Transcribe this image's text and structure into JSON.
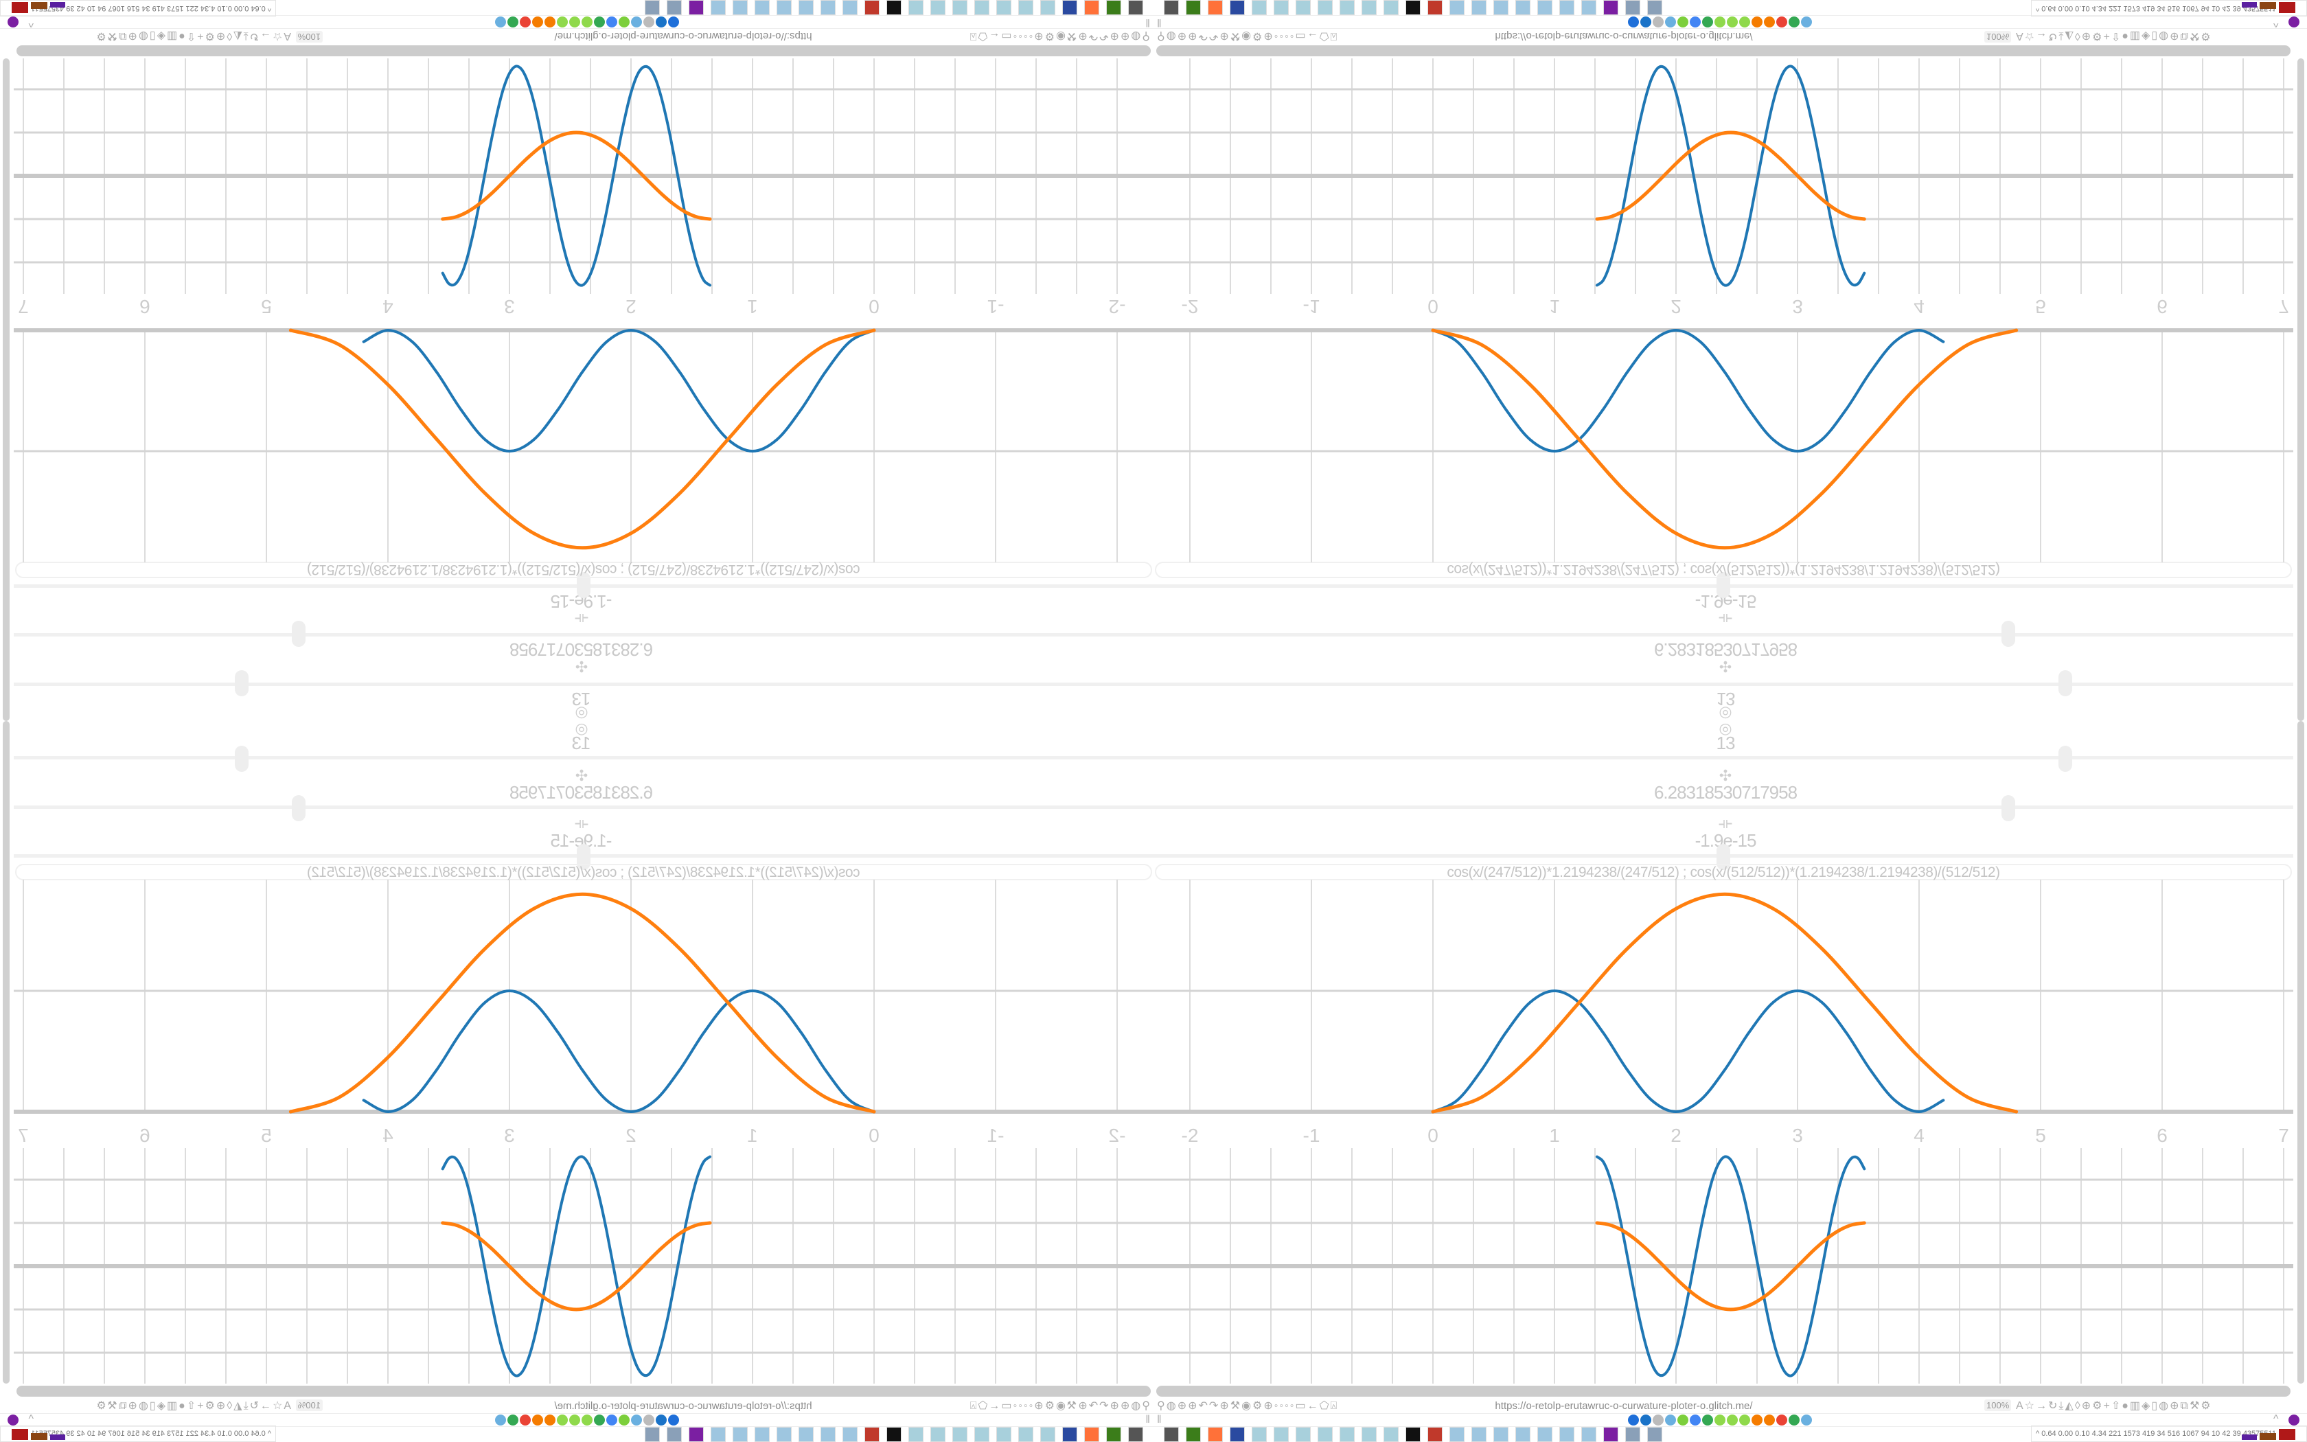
{
  "browser": {
    "url": "https://o-retolp-erutawruc-o-curwature-ploter-o.glitch.me/",
    "zoom_level": "100%",
    "address_left_icons": [
      "rocket-icon",
      "extension-icon",
      "globe-icon",
      "globe-icon",
      "undo-icon",
      "redo-icon",
      "globe-icon",
      "wrench-icon",
      "firefox-icon",
      "gear-icon",
      "globe-icon",
      "circle-icon",
      "circle-icon",
      "circle-icon",
      "circle-icon",
      "folder-icon",
      "back-icon",
      "tag-icon",
      "lock-icon"
    ],
    "address_right_icons": [
      "translate-icon",
      "star-icon",
      "forward-icon",
      "reload-icon",
      "download-icon",
      "color-icon",
      "bookmark-icon",
      "globe-icon",
      "gear-icon",
      "plus-icon",
      "upload-icon",
      "record-icon",
      "trash-icon",
      "pocket-icon",
      "page-icon",
      "extension-icon",
      "globe-icon",
      "puzzle-icon",
      "wrench-icon",
      "settings-icon"
    ],
    "bookmark_icons": [
      {
        "name": "mail-icon",
        "color": "#1e6fd9"
      },
      {
        "name": "bird-icon",
        "color": "#1a73c8"
      },
      {
        "name": "mute-icon",
        "color": "#bbbbbb"
      },
      {
        "name": "pattern-icon",
        "color": "#6ab0e0"
      },
      {
        "name": "leaf-icon",
        "color": "#7ccf3b"
      },
      {
        "name": "google-icon",
        "color": "#4285f4"
      },
      {
        "name": "google-icon",
        "color": "#34a853"
      },
      {
        "name": "google-green-icon",
        "color": "#8fd94b"
      },
      {
        "name": "google-green-icon",
        "color": "#8fd94b"
      },
      {
        "name": "google-green-icon",
        "color": "#8fd94b"
      },
      {
        "name": "gear-orange-icon",
        "color": "#f57c00"
      },
      {
        "name": "gear-orange-icon",
        "color": "#f57c00"
      },
      {
        "name": "google-icon",
        "color": "#ea4335"
      },
      {
        "name": "google-icon",
        "color": "#34a853"
      },
      {
        "name": "pattern-icon",
        "color": "#6ab0e0"
      }
    ],
    "taskbar_icons": [
      {
        "name": "terminal-icon",
        "color": "#555555"
      },
      {
        "name": "app-green-icon",
        "color": "#3b7d1a"
      },
      {
        "name": "firefox-icon",
        "color": "#ff7139"
      },
      {
        "name": "save-icon",
        "color": "#2a4aa0"
      },
      {
        "name": "window-icon",
        "color": "#a8d0dc"
      },
      {
        "name": "window-icon",
        "color": "#a8d0dc"
      },
      {
        "name": "window-icon",
        "color": "#a8d0dc"
      },
      {
        "name": "window-icon",
        "color": "#a8d0dc"
      },
      {
        "name": "window-icon",
        "color": "#a8d0dc"
      },
      {
        "name": "window-icon",
        "color": "#a8d0dc"
      },
      {
        "name": "window-icon",
        "color": "#a8d0dc"
      },
      {
        "name": "inkscape-icon",
        "color": "#111111"
      },
      {
        "name": "app-red-icon",
        "color": "#c0392b"
      },
      {
        "name": "phone-icon",
        "color": "#9ec6e0"
      },
      {
        "name": "phone-icon",
        "color": "#9ec6e0"
      },
      {
        "name": "phone-icon",
        "color": "#9ec6e0"
      },
      {
        "name": "phone-icon",
        "color": "#9ec6e0"
      },
      {
        "name": "phone-icon",
        "color": "#9ec6e0"
      },
      {
        "name": "phone-icon",
        "color": "#9ec6e0"
      },
      {
        "name": "phone-icon",
        "color": "#9ec6e0"
      },
      {
        "name": "app-purple-icon",
        "color": "#7b1fa2"
      },
      {
        "name": "document-icon",
        "color": "#8aa0b8"
      },
      {
        "name": "document-icon",
        "color": "#8aa0b8"
      }
    ],
    "tray_stats": "0.64 0.00 0.10 4.34  221  1573 419   34   516 1067  94    10    42    39  43575511"
  },
  "sliders": [
    {
      "icon": "target-icon",
      "glyph": "◎",
      "value": "13",
      "thumb_fraction": 0.8
    },
    {
      "icon": "move-icon",
      "glyph": "✣",
      "value": "6.28318530717958",
      "thumb_fraction": 0.75
    },
    {
      "icon": "phase-icon",
      "glyph": "⟛",
      "value": "-1.9e-15",
      "thumb_fraction": 0.5
    }
  ],
  "expression": "cos(x/(247/512))*1.2194238/(247/512)   ;   cos(x/(512/512))*(1.2194238/1.2194238)/(512/512)",
  "colors": {
    "series_blue": "#1f77b4",
    "series_orange": "#ff7f0e",
    "grid": "#d0d0d0",
    "axis": "#c8c8c8"
  },
  "chart_data": [
    {
      "type": "line",
      "x_ticks": [
        "-2",
        "-1",
        "0",
        "1",
        "2",
        "3",
        "4",
        "5",
        "6",
        "7"
      ],
      "xlim": [
        -2.2,
        7.1
      ],
      "ylim": [
        0,
        1.9
      ],
      "grid": true,
      "series": [
        {
          "color": "#1f77b4",
          "x": [
            0,
            0.2,
            0.4,
            0.6,
            0.8,
            1.0,
            1.2,
            1.4,
            1.6,
            1.8,
            2.0,
            2.2,
            2.4,
            2.6,
            2.8,
            3.0,
            3.2,
            3.4,
            3.6,
            3.8,
            4.0,
            4.2
          ],
          "y": [
            0,
            0.095,
            0.345,
            0.655,
            0.905,
            1,
            0.905,
            0.655,
            0.345,
            0.095,
            0,
            0.095,
            0.345,
            0.655,
            0.905,
            1,
            0.905,
            0.655,
            0.345,
            0.095,
            0,
            0.095
          ]
        },
        {
          "color": "#ff7f0e",
          "x": [
            0,
            0.4,
            0.8,
            1.2,
            1.6,
            2.0,
            2.4,
            2.8,
            3.2,
            3.6,
            4.0,
            4.4,
            4.8
          ],
          "y": [
            0,
            0.12,
            0.45,
            0.9,
            1.35,
            1.68,
            1.8,
            1.68,
            1.35,
            0.9,
            0.45,
            0.12,
            0
          ]
        }
      ]
    },
    {
      "type": "line",
      "xlim": [
        -2.2,
        7.1
      ],
      "ylim": [
        -2.7,
        2.7
      ],
      "grid": true,
      "series": [
        {
          "color": "#1f77b4",
          "x": [
            1.35,
            1.4,
            1.45,
            1.5,
            1.55,
            1.6,
            1.65,
            1.7,
            1.75,
            1.8,
            1.85,
            1.9,
            1.95,
            2.0,
            2.05,
            2.1,
            2.15,
            2.2,
            2.25,
            2.3,
            2.35,
            2.4,
            2.45,
            2.5,
            2.55,
            2.6,
            2.65,
            2.7,
            2.75,
            2.8,
            2.85,
            2.9,
            2.95,
            3.0,
            3.05,
            3.1,
            3.15,
            3.2,
            3.25,
            3.3,
            3.35,
            3.4,
            3.45,
            3.5,
            3.55
          ],
          "y": [
            2.53,
            2.42,
            2.1,
            1.59,
            0.95,
            0.22,
            -0.52,
            -1.22,
            -1.81,
            -2.25,
            -2.49,
            -2.51,
            -2.32,
            -1.92,
            -1.35,
            -0.67,
            0.07,
            0.81,
            1.47,
            2.01,
            2.37,
            2.53,
            2.46,
            2.18,
            1.71,
            1.09,
            0.37,
            -0.37,
            -1.09,
            -1.71,
            -2.18,
            -2.46,
            -2.53,
            -2.37,
            -2.01,
            -1.47,
            -0.81,
            -0.08,
            0.67,
            1.35,
            1.92,
            2.31,
            2.51,
            2.49,
            2.25
          ]
        },
        {
          "color": "#ff7f0e",
          "x": [
            1.35,
            1.45,
            1.55,
            1.65,
            1.75,
            1.85,
            1.95,
            2.05,
            2.15,
            2.25,
            2.35,
            2.45,
            2.55,
            2.65,
            2.75,
            2.85,
            2.95,
            3.05,
            3.15,
            3.25,
            3.35,
            3.45,
            3.55
          ],
          "y": [
            1,
            0.959,
            0.841,
            0.655,
            0.415,
            0.142,
            -0.142,
            -0.415,
            -0.655,
            -0.841,
            -0.959,
            -1,
            -0.959,
            -0.841,
            -0.655,
            -0.415,
            -0.142,
            0.142,
            0.415,
            0.655,
            0.841,
            0.959,
            1
          ]
        }
      ]
    }
  ]
}
